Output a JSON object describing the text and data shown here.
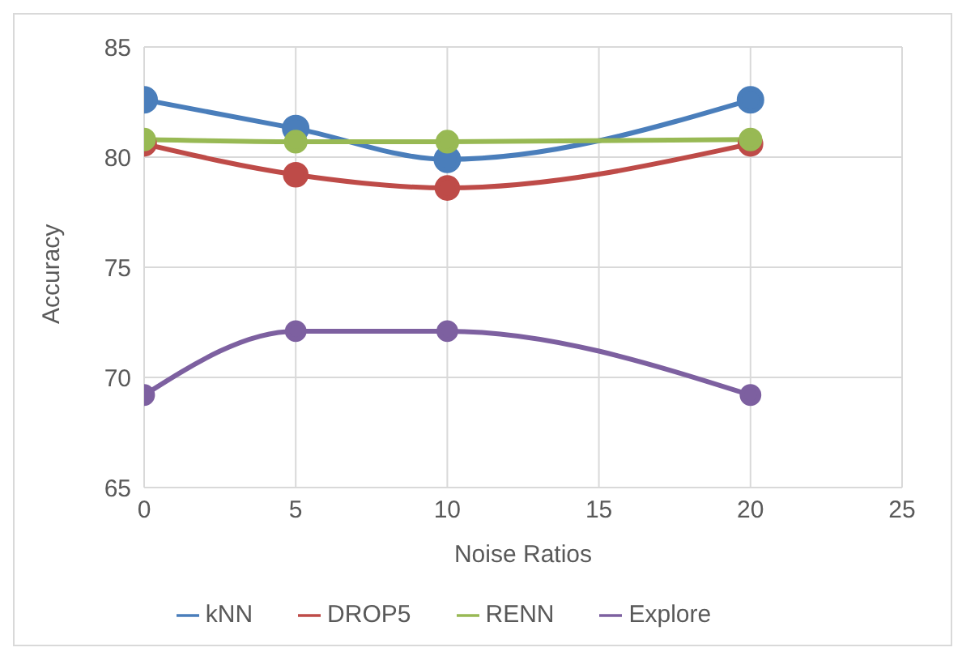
{
  "chart_data": {
    "type": "line",
    "xlabel": "Noise Ratios",
    "ylabel": "Accuracy",
    "x": [
      0,
      5,
      10,
      20
    ],
    "series": [
      {
        "name": "kNN",
        "color": "#4a7ebb",
        "values": [
          82.6,
          81.3,
          79.9,
          82.6
        ]
      },
      {
        "name": "DROP5",
        "color": "#be4b48",
        "values": [
          80.6,
          79.2,
          78.6,
          80.6
        ]
      },
      {
        "name": "RENN",
        "color": "#98b954",
        "values": [
          80.8,
          80.7,
          80.7,
          80.8
        ]
      },
      {
        "name": "Explore",
        "color": "#7d60a0",
        "values": [
          69.2,
          72.1,
          72.1,
          69.2
        ]
      }
    ],
    "xlim": [
      0,
      25
    ],
    "xticks": [
      0,
      5,
      10,
      15,
      20,
      25
    ],
    "ylim": [
      65,
      85
    ],
    "yticks": [
      65,
      70,
      75,
      80,
      85
    ],
    "grid": true,
    "legend": "bottom",
    "marker": "circle",
    "line_style": "solid"
  }
}
